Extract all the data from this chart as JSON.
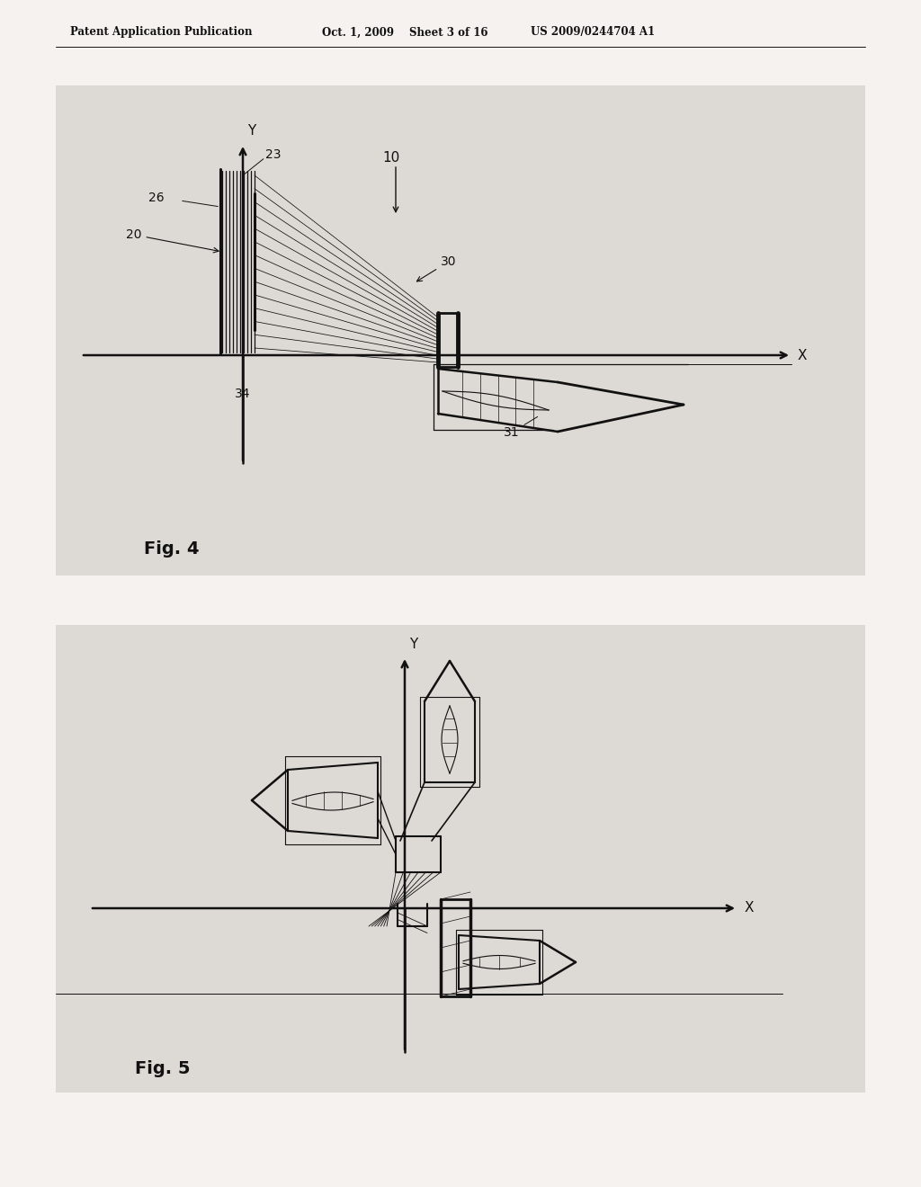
{
  "page_bg": "#f5f2ef",
  "panel_bg": "#ddd9d4",
  "header_text": "Patent Application Publication",
  "header_date": "Oct. 1, 2009",
  "header_sheet": "Sheet 3 of 16",
  "header_patent": "US 2009/0244704 A1",
  "fig4_label": "Fig. 4",
  "fig5_label": "Fig. 5",
  "tc": "#111111",
  "lc": "#111111",
  "lc_gray": "#555555"
}
